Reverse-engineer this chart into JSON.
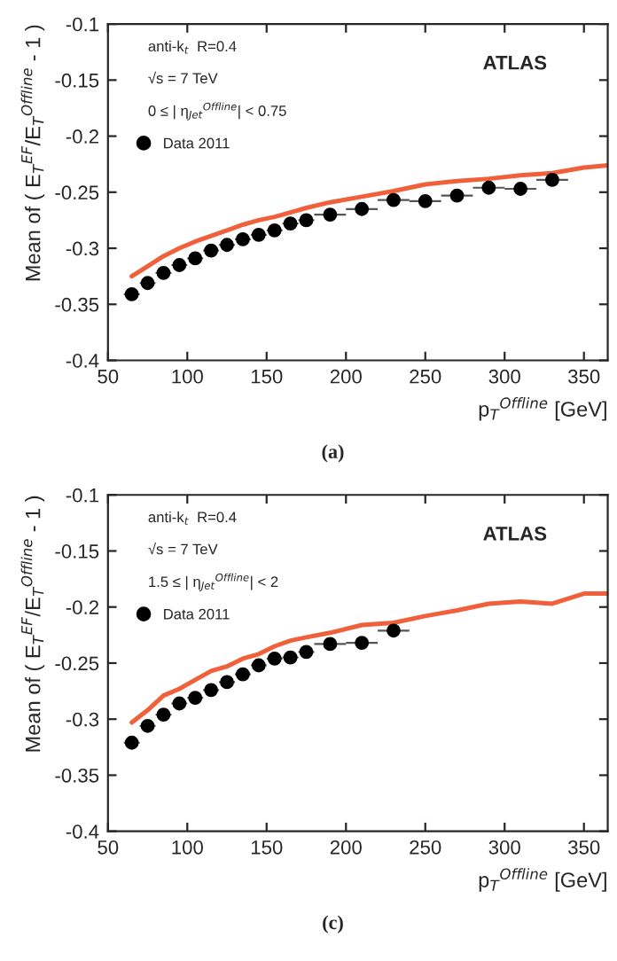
{
  "chart_data": [
    {
      "type": "line",
      "xlabel": "p$_{T}$$^{Offline}$ [GeV]",
      "ylabel": "Mean of ( E$_{T}$$^{EF}$/E$_{T}$$^{Offline}$ - 1 )",
      "xlim": [
        50,
        365
      ],
      "xticks": [
        50,
        100,
        150,
        200,
        250,
        300,
        350
      ],
      "ylim": [
        -0.4,
        -0.1
      ],
      "yticks": [
        -0.4,
        -0.35,
        -0.3,
        -0.25,
        -0.2,
        -0.15,
        -0.1
      ],
      "legend": "top left",
      "grid": false,
      "annotations": [
        "anti-k$_{t}$  R=0.4",
        "√s = 7 TeV",
        "0 ≤ | η$_{Jet}$$^{Offline}$| < 0.75",
        "ATLAS",
        "(a)"
      ],
      "series": [
        {
          "color": "#f0603a",
          "x": [
            65,
            75,
            85,
            95,
            105,
            115,
            125,
            135,
            145,
            155,
            165,
            175,
            190,
            210,
            230,
            250,
            270,
            290,
            310,
            330,
            350,
            365
          ],
          "values": [
            -0.325,
            -0.316,
            -0.307,
            -0.3,
            -0.294,
            -0.289,
            -0.284,
            -0.279,
            -0.275,
            -0.272,
            -0.268,
            -0.264,
            -0.259,
            -0.254,
            -0.249,
            -0.243,
            -0.24,
            -0.238,
            -0.235,
            -0.233,
            -0.228,
            -0.226
          ]
        },
        {
          "type": "scatter",
          "marker": "circle",
          "name": "Data 2011",
          "color": "#000000",
          "x": [
            65,
            75,
            85,
            95,
            105,
            115,
            125,
            135,
            145,
            155,
            165,
            175,
            190,
            210,
            230,
            250,
            270,
            290,
            310,
            330
          ],
          "values": [
            -0.341,
            -0.331,
            -0.322,
            -0.315,
            -0.309,
            -0.302,
            -0.297,
            -0.292,
            -0.288,
            -0.284,
            -0.278,
            -0.275,
            -0.27,
            -0.265,
            -0.257,
            -0.258,
            -0.253,
            -0.246,
            -0.247,
            -0.239
          ],
          "xerrors": [
            5,
            5,
            5,
            5,
            5,
            5,
            5,
            5,
            5,
            5,
            5,
            5,
            10,
            10,
            10,
            10,
            10,
            10,
            10,
            10
          ]
        }
      ]
    },
    {
      "type": "line",
      "xlabel": "p$_{T}$$^{Offline}$ [GeV]",
      "ylabel": "Mean of ( E$_{T}$$^{EF}$/E$_{T}$$^{Offline}$ - 1 )",
      "xlim": [
        50,
        365
      ],
      "xticks": [
        50,
        100,
        150,
        200,
        250,
        300,
        350
      ],
      "ylim": [
        -0.4,
        -0.1
      ],
      "yticks": [
        -0.4,
        -0.35,
        -0.3,
        -0.25,
        -0.2,
        -0.15,
        -0.1
      ],
      "legend": "top left",
      "grid": false,
      "annotations": [
        "anti-k$_{t}$  R=0.4",
        "√s = 7 TeV",
        "1.5 ≤ | η$_{Jet}$$^{Offline}$| < 2",
        "ATLAS",
        "(c)"
      ],
      "series": [
        {
          "color": "#f0603a",
          "x": [
            65,
            75,
            85,
            95,
            105,
            115,
            125,
            135,
            145,
            155,
            165,
            175,
            190,
            210,
            230,
            250,
            270,
            290,
            310,
            330,
            350,
            365
          ],
          "values": [
            -0.303,
            -0.292,
            -0.279,
            -0.273,
            -0.265,
            -0.257,
            -0.253,
            -0.246,
            -0.242,
            -0.235,
            -0.23,
            -0.227,
            -0.223,
            -0.216,
            -0.214,
            -0.208,
            -0.203,
            -0.197,
            -0.195,
            -0.197,
            -0.188,
            -0.188
          ]
        },
        {
          "type": "scatter",
          "marker": "circle",
          "name": "Data 2011",
          "color": "#000000",
          "x": [
            65,
            75,
            85,
            95,
            105,
            115,
            125,
            135,
            145,
            155,
            165,
            175,
            190,
            210,
            230
          ],
          "values": [
            -0.321,
            -0.306,
            -0.296,
            -0.286,
            -0.281,
            -0.274,
            -0.267,
            -0.26,
            -0.252,
            -0.246,
            -0.245,
            -0.24,
            -0.233,
            -0.232,
            -0.221
          ],
          "xerrors": [
            5,
            5,
            5,
            5,
            5,
            5,
            5,
            5,
            5,
            5,
            5,
            5,
            10,
            10,
            10
          ]
        }
      ]
    }
  ]
}
